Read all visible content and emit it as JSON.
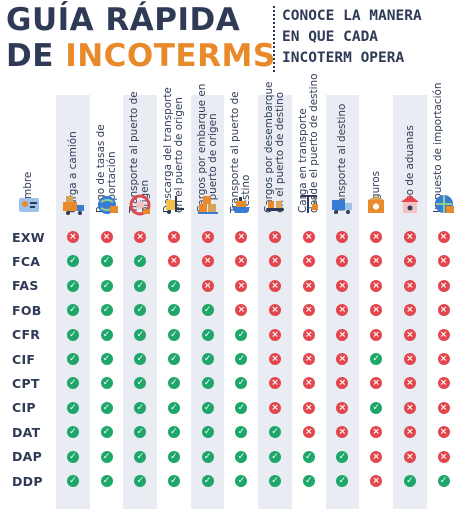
{
  "title_line1": "GUÍA RÁPIDA",
  "title_line2_prefix": "DE ",
  "title_line2_accent": "INCOTERMS",
  "subtitle_lines": [
    "CONOCE LA MANERA",
    "EN QUE CADA",
    "INCOTERM OPERA"
  ],
  "colors": {
    "text": "#2f3b56",
    "accent": "#e8892a",
    "yes": "#1fa66a",
    "no": "#e2474e",
    "stripe": "#e9edf3"
  },
  "columns": [
    {
      "label": "Nombre",
      "icon": "id-card-icon"
    },
    {
      "label": "Carga a camión",
      "icon": "loading-truck-icon"
    },
    {
      "label": "Pago de tasas de exportación",
      "icon": "globe-payment-icon"
    },
    {
      "label": "Transporte al puerto de origen",
      "icon": "origin-port-icon"
    },
    {
      "label": "Descarga del transporte en el puerto de origen",
      "icon": "forklift-icon"
    },
    {
      "label": "Cargos por embarque en el puerto de origen",
      "icon": "boxes-icon"
    },
    {
      "label": "Transporte al puerto de destino",
      "icon": "ship-icon"
    },
    {
      "label": "Cargos por desembarque en el puerto de destino",
      "icon": "conveyor-icon"
    },
    {
      "label": "Carga en transporte desde el puerto de destino",
      "icon": "crane-icon"
    },
    {
      "label": "Transporte al destino",
      "icon": "delivery-truck-icon"
    },
    {
      "label": "Seguros",
      "icon": "insurance-box-icon"
    },
    {
      "label": "Paso de aduanas",
      "icon": "customs-icon"
    },
    {
      "label": "Impuesto de importación",
      "icon": "globe-tax-icon"
    }
  ],
  "rows": [
    {
      "name": "EXW",
      "marks": [
        0,
        0,
        0,
        0,
        0,
        0,
        0,
        0,
        0,
        0,
        0,
        0
      ]
    },
    {
      "name": "FCA",
      "marks": [
        1,
        1,
        1,
        0,
        0,
        0,
        0,
        0,
        0,
        0,
        0,
        0
      ]
    },
    {
      "name": "FAS",
      "marks": [
        1,
        1,
        1,
        1,
        0,
        0,
        0,
        0,
        0,
        0,
        0,
        0
      ]
    },
    {
      "name": "FOB",
      "marks": [
        1,
        1,
        1,
        1,
        1,
        0,
        0,
        0,
        0,
        0,
        0,
        0
      ]
    },
    {
      "name": "CFR",
      "marks": [
        1,
        1,
        1,
        1,
        1,
        1,
        0,
        0,
        0,
        0,
        0,
        0
      ]
    },
    {
      "name": "CIF",
      "marks": [
        1,
        1,
        1,
        1,
        1,
        1,
        0,
        0,
        0,
        1,
        0,
        0
      ]
    },
    {
      "name": "CPT",
      "marks": [
        1,
        1,
        1,
        1,
        1,
        1,
        0,
        0,
        0,
        0,
        0,
        0
      ]
    },
    {
      "name": "CIP",
      "marks": [
        1,
        1,
        1,
        1,
        1,
        1,
        0,
        0,
        0,
        1,
        0,
        0
      ]
    },
    {
      "name": "DAT",
      "marks": [
        1,
        1,
        1,
        1,
        1,
        1,
        1,
        0,
        0,
        0,
        0,
        0
      ]
    },
    {
      "name": "DAP",
      "marks": [
        1,
        1,
        1,
        1,
        1,
        1,
        1,
        1,
        1,
        0,
        0,
        0
      ]
    },
    {
      "name": "DDP",
      "marks": [
        1,
        1,
        1,
        1,
        1,
        1,
        1,
        1,
        1,
        0,
        1,
        1
      ]
    }
  ]
}
